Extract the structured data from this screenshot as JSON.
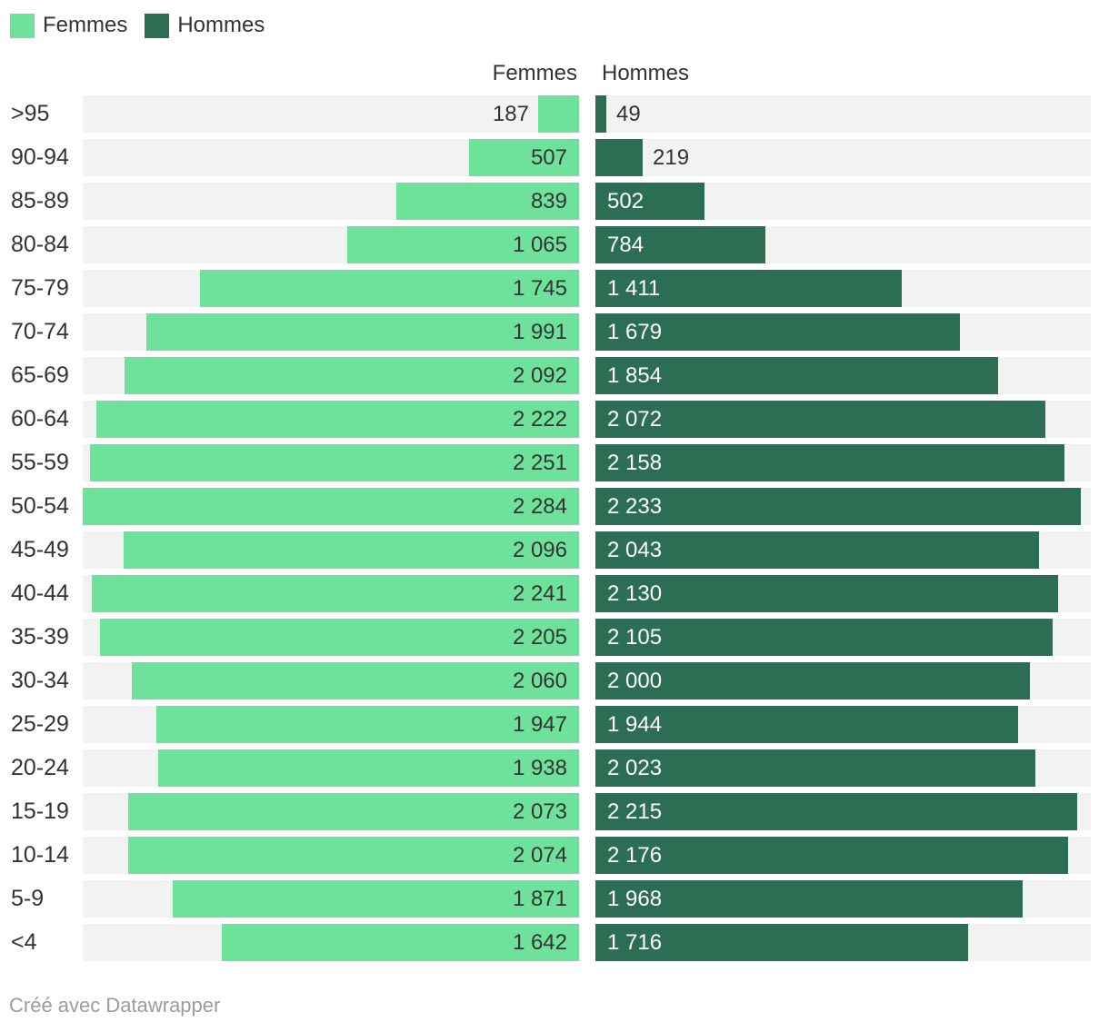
{
  "legend": {
    "items": [
      {
        "label": "Femmes",
        "color": "#6ee29b"
      },
      {
        "label": "Hommes",
        "color": "#2b6e53"
      }
    ]
  },
  "columns": {
    "left_header": "Femmes",
    "right_header": "Hommes"
  },
  "footer": {
    "text": "Créé avec Datawrapper"
  },
  "colors": {
    "femmes_bar": "#6ee29b",
    "hommes_bar": "#2b6e53",
    "track": "#f2f2f2",
    "value_dark": "#333333",
    "value_light": "#ffffff",
    "footer_gray": "#9c9c9c"
  },
  "chart_data": {
    "type": "bar",
    "subtype": "population-pyramid",
    "orientation": "horizontal",
    "grid": false,
    "legend_position": "top-left",
    "categories": [
      ">95",
      "90-94",
      "85-89",
      "80-84",
      "75-79",
      "70-74",
      "65-69",
      "60-64",
      "55-59",
      "50-54",
      "45-49",
      "40-44",
      "35-39",
      "30-34",
      "25-29",
      "20-24",
      "15-19",
      "10-14",
      "5-9",
      "<4"
    ],
    "series": [
      {
        "name": "Femmes",
        "side": "left",
        "color": "#6ee29b",
        "values": [
          187,
          507,
          839,
          1065,
          1745,
          1991,
          2092,
          2222,
          2251,
          2284,
          2096,
          2241,
          2205,
          2060,
          1947,
          1938,
          2073,
          2074,
          1871,
          1642
        ],
        "labels": [
          "187",
          "507",
          "839",
          "1 065",
          "1 745",
          "1 991",
          "2 092",
          "2 222",
          "2 251",
          "2 284",
          "2 096",
          "2 241",
          "2 205",
          "2 060",
          "1 947",
          "1 938",
          "2 073",
          "2 074",
          "1 871",
          "1 642"
        ]
      },
      {
        "name": "Hommes",
        "side": "right",
        "color": "#2b6e53",
        "values": [
          49,
          219,
          502,
          784,
          1411,
          1679,
          1854,
          2072,
          2158,
          2233,
          2043,
          2130,
          2105,
          2000,
          1944,
          2023,
          2215,
          2176,
          1968,
          1716
        ],
        "labels": [
          "49",
          "219",
          "502",
          "784",
          "1 411",
          "1 679",
          "1 854",
          "2 072",
          "2 158",
          "2 233",
          "2 043",
          "2 130",
          "2 105",
          "2 000",
          "1 944",
          "2 023",
          "2 215",
          "2 176",
          "1 968",
          "1 716"
        ]
      }
    ],
    "xlim": [
      0,
      2284
    ],
    "title": "",
    "xlabel": "",
    "ylabel": ""
  }
}
